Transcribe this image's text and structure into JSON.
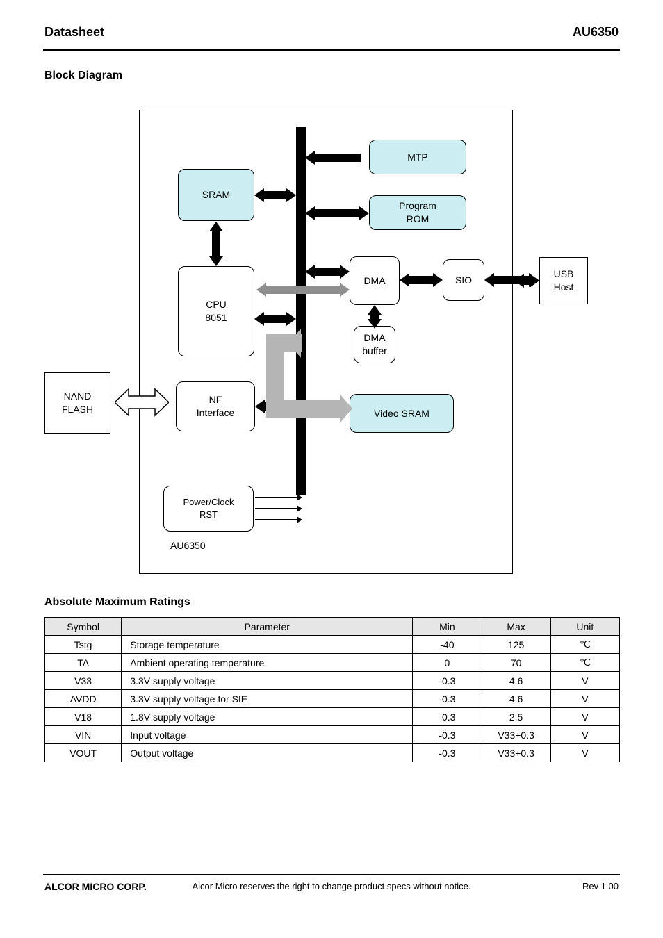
{
  "header": {
    "title": "Datasheet",
    "code": "AU6350"
  },
  "section_blockdiag": "Block Diagram",
  "diagram": {
    "chip_name": "AU6350",
    "blocks": {
      "mtp": {
        "label": "MTP"
      },
      "prom": {
        "label": "Program\nROM"
      },
      "sram": {
        "label": "SRAM"
      },
      "cpu": {
        "label": "CPU\n8051"
      },
      "dma": {
        "label": "DMA"
      },
      "sio": {
        "label": "SIO"
      },
      "dmabuf": {
        "label": "DMA\nbuffer"
      },
      "vram": {
        "label": "Video SRAM"
      },
      "nfif": {
        "label": "NF\nInterface"
      },
      "pwr": {
        "label": "Power/Clock\nRST"
      }
    },
    "external": {
      "nf": {
        "label": "NAND\nFLASH"
      },
      "host": {
        "label": "USB\nHost"
      }
    }
  },
  "abs_section": "Absolute Maximum Ratings",
  "table": {
    "columns": [
      "Symbol",
      "Parameter",
      "Min",
      "Max",
      "Unit"
    ],
    "rows": [
      {
        "sym": "Tstg",
        "param": "Storage temperature",
        "min": "-40",
        "max": "125",
        "unit": "℃"
      },
      {
        "sym": "TA",
        "param": "Ambient operating temperature",
        "min": "0",
        "max": "70",
        "unit": "℃"
      },
      {
        "sym": "V33",
        "param": "3.3V supply voltage",
        "min": "-0.3",
        "max": "4.6",
        "unit": "V"
      },
      {
        "sym": "AVDD",
        "param": "3.3V supply voltage for SIE",
        "min": "-0.3",
        "max": "4.6",
        "unit": "V"
      },
      {
        "sym": "V18",
        "param": "1.8V supply voltage",
        "min": "-0.3",
        "max": "2.5",
        "unit": "V"
      },
      {
        "sym": "VIN",
        "param": "Input voltage",
        "min": "-0.3",
        "max": "V33+0.3",
        "unit": "V"
      },
      {
        "sym": "VOUT",
        "param": "Output voltage",
        "min": "-0.3",
        "max": "V33+0.3",
        "unit": "V"
      }
    ]
  },
  "footer": {
    "left": "ALCOR MICRO CORP.",
    "center": "Alcor Micro reserves the right to change product specs without notice.",
    "right": "Rev 1.00"
  },
  "style": {
    "blue_fill": "#cceef2",
    "gray_arrow": "#8e8e8e",
    "gray_fat": "#b5b5b5"
  }
}
